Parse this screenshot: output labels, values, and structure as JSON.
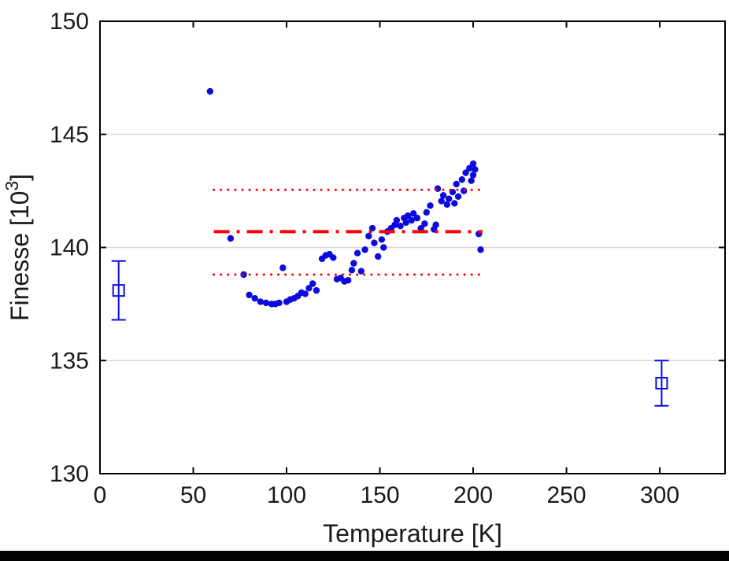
{
  "figure": {
    "background": "#ffffff",
    "bottom_bar_color": "#000000"
  },
  "chart_data": {
    "type": "scatter",
    "title": "",
    "xlabel": "Temperature [K]",
    "ylabel": {
      "main": "Finesse [10",
      "sup": "3",
      "close": "]"
    },
    "xlim": [
      0,
      335
    ],
    "ylim": [
      130,
      150
    ],
    "xticks": [
      0,
      50,
      100,
      150,
      200,
      250,
      300
    ],
    "yticks": [
      130,
      135,
      140,
      145,
      150
    ],
    "grid": {
      "y": true,
      "x": false,
      "color": "#d9d9d9",
      "lines_at": [
        135,
        140,
        145
      ]
    },
    "axis": {
      "color": "#000000",
      "tick_label_color": "#1a1a1a",
      "tick_font_size": 30,
      "label_font_size": 32,
      "legend": "none"
    },
    "series": [
      {
        "name": "finesse-scatter",
        "type": "scatter",
        "marker": "dot",
        "marker_radius": 4.2,
        "color": "#0b0bdd",
        "points": [
          [
            59,
            146.9
          ],
          [
            70,
            140.4
          ],
          [
            77,
            138.8
          ],
          [
            80,
            137.9
          ],
          [
            83,
            137.75
          ],
          [
            86,
            137.6
          ],
          [
            89,
            137.55
          ],
          [
            92,
            137.5
          ],
          [
            94,
            137.5
          ],
          [
            96,
            137.55
          ],
          [
            98,
            139.1
          ],
          [
            100,
            137.6
          ],
          [
            102,
            137.7
          ],
          [
            104,
            137.75
          ],
          [
            106,
            137.85
          ],
          [
            108,
            138.0
          ],
          [
            110,
            137.95
          ],
          [
            112,
            138.2
          ],
          [
            114,
            138.4
          ],
          [
            116,
            138.1
          ],
          [
            119,
            139.5
          ],
          [
            121,
            139.65
          ],
          [
            123,
            139.7
          ],
          [
            125,
            139.55
          ],
          [
            127,
            138.6
          ],
          [
            129,
            138.65
          ],
          [
            131,
            138.5
          ],
          [
            133,
            138.55
          ],
          [
            135,
            139.0
          ],
          [
            136,
            139.3
          ],
          [
            138,
            139.75
          ],
          [
            140,
            138.95
          ],
          [
            142,
            139.9
          ],
          [
            144,
            140.5
          ],
          [
            146,
            140.85
          ],
          [
            147,
            140.2
          ],
          [
            149,
            139.6
          ],
          [
            151,
            140.35
          ],
          [
            152,
            140.0
          ],
          [
            154,
            140.7
          ],
          [
            156,
            140.85
          ],
          [
            158,
            141.0
          ],
          [
            159,
            141.2
          ],
          [
            161,
            140.95
          ],
          [
            163,
            141.3
          ],
          [
            164,
            141.1
          ],
          [
            165,
            141.4
          ],
          [
            167,
            141.2
          ],
          [
            168,
            141.5
          ],
          [
            170,
            141.3
          ],
          [
            172,
            140.85
          ],
          [
            174,
            141.05
          ],
          [
            175,
            141.55
          ],
          [
            177,
            141.85
          ],
          [
            179,
            140.8
          ],
          [
            180,
            141.0
          ],
          [
            181,
            142.6
          ],
          [
            183,
            142.05
          ],
          [
            184,
            142.3
          ],
          [
            186,
            141.9
          ],
          [
            187,
            142.15
          ],
          [
            189,
            142.45
          ],
          [
            190,
            141.95
          ],
          [
            191,
            142.8
          ],
          [
            192,
            142.25
          ],
          [
            194,
            143.0
          ],
          [
            195,
            142.5
          ],
          [
            196,
            143.3
          ],
          [
            198,
            143.5
          ],
          [
            199,
            142.95
          ],
          [
            200,
            143.7
          ],
          [
            200,
            143.2
          ],
          [
            201,
            143.45
          ],
          [
            203,
            140.6
          ],
          [
            204,
            139.9
          ]
        ]
      },
      {
        "name": "mean-line",
        "type": "hline",
        "style": "dash-dot",
        "color": "#ff0000",
        "y": 140.7,
        "x_range": [
          61,
          205
        ],
        "stroke_width": 4
      },
      {
        "name": "upper-bound-line",
        "type": "hline",
        "style": "dotted",
        "color": "#ff0000",
        "y": 142.55,
        "x_range": [
          61,
          205
        ],
        "stroke_width": 3
      },
      {
        "name": "lower-bound-line",
        "type": "hline",
        "style": "dotted",
        "color": "#ff0000",
        "y": 138.8,
        "x_range": [
          61,
          205
        ],
        "stroke_width": 3
      },
      {
        "name": "errorbar-points",
        "type": "errorbar",
        "marker": "open-square",
        "color": "#0b0bdd",
        "points": [
          {
            "x": 10,
            "y": 138.1,
            "err": 1.3
          },
          {
            "x": 301,
            "y": 134.0,
            "err": 1.0
          }
        ]
      }
    ]
  }
}
